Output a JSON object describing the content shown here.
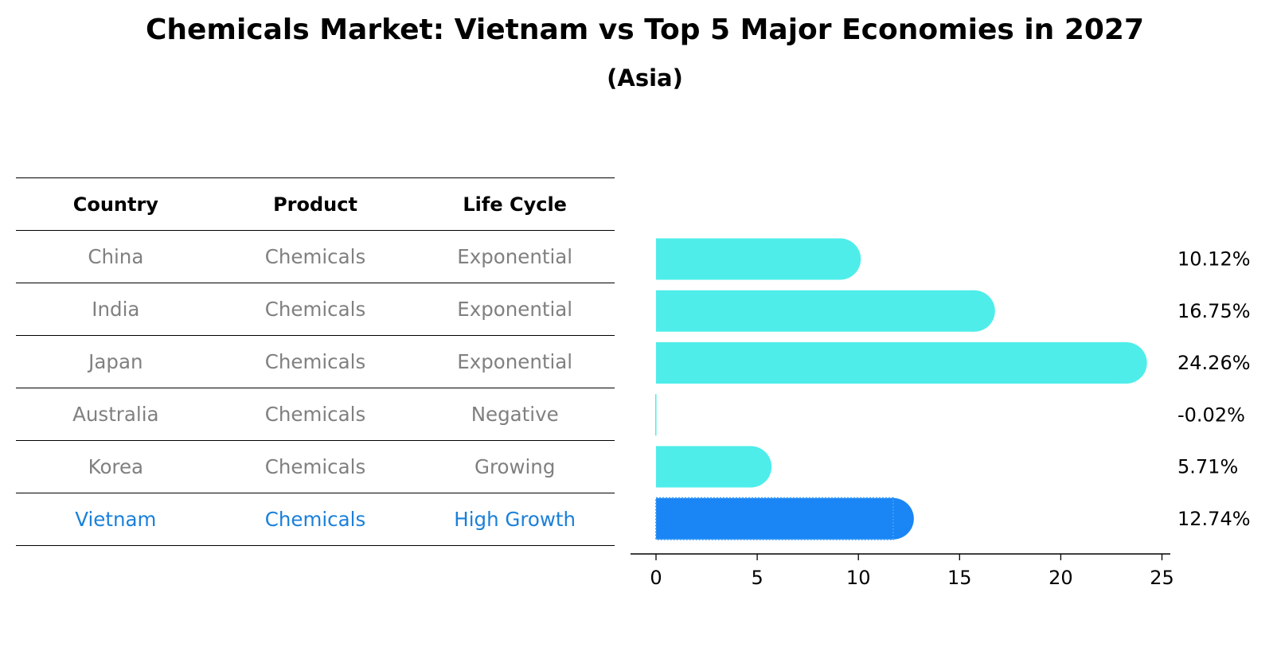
{
  "title": "Chemicals Market: Vietnam vs Top 5 Major Economies in 2027",
  "subtitle": "(Asia)",
  "table": {
    "headers": [
      "Country",
      "Product",
      "Life Cycle"
    ],
    "rows": [
      {
        "country": "China",
        "product": "Chemicals",
        "life_cycle": "Exponential",
        "highlight": false
      },
      {
        "country": "India",
        "product": "Chemicals",
        "life_cycle": "Exponential",
        "highlight": false
      },
      {
        "country": "Japan",
        "product": "Chemicals",
        "life_cycle": "Exponential",
        "highlight": false
      },
      {
        "country": "Australia",
        "product": "Chemicals",
        "life_cycle": "Negative",
        "highlight": false
      },
      {
        "country": "Korea",
        "product": "Chemicals",
        "life_cycle": "Growing",
        "highlight": false
      },
      {
        "country": "Vietnam",
        "product": "Chemicals",
        "life_cycle": "High Growth",
        "highlight": true
      }
    ]
  },
  "colors": {
    "bar": "#4eedea",
    "highlight_bar": "#1a85f5",
    "muted_text": "#808080",
    "highlight_text": "#1a80da"
  },
  "chart_data": {
    "type": "bar",
    "orientation": "horizontal",
    "categories": [
      "China",
      "India",
      "Japan",
      "Australia",
      "Korea",
      "Vietnam"
    ],
    "values": [
      10.12,
      16.75,
      24.26,
      -0.02,
      5.71,
      12.74
    ],
    "value_labels": [
      "10.12%",
      "16.75%",
      "24.26%",
      "-0.02%",
      "5.71%",
      "12.74%"
    ],
    "highlight_category": "Vietnam",
    "xlim": [
      -1.3,
      25.5
    ],
    "xticks": [
      0,
      5,
      10,
      15,
      20,
      25
    ],
    "xlabel": "",
    "ylabel": ""
  }
}
